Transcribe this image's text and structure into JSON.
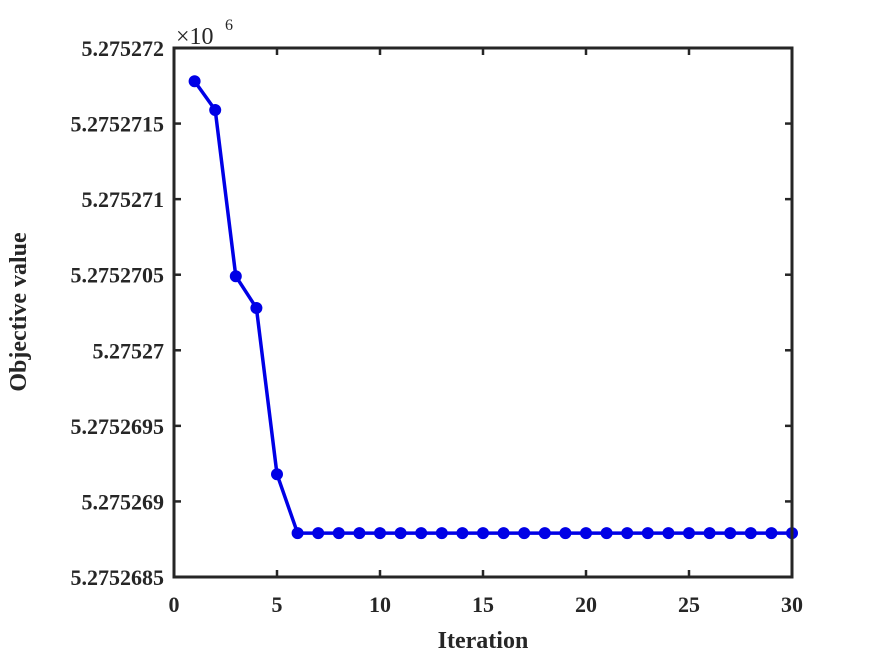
{
  "chart_data": {
    "type": "line",
    "title": "",
    "xlabel": "Iteration",
    "ylabel": "Objective value",
    "exponent_base": "×10",
    "exponent_power": "6",
    "xlim": [
      0,
      30
    ],
    "ylim": [
      5.2752685,
      5.275272
    ],
    "xticks": [
      0,
      5,
      10,
      15,
      20,
      25,
      30
    ],
    "xtick_labels": [
      "0",
      "5",
      "10",
      "15",
      "20",
      "25",
      "30"
    ],
    "yticks": [
      5.2752685,
      5.275269,
      5.2752695,
      5.27527,
      5.2752705,
      5.275271,
      5.2752715,
      5.275272
    ],
    "ytick_labels": [
      "5.2752685",
      "5.275269",
      "5.2752695",
      "5.27527",
      "5.2752705",
      "5.275271",
      "5.2752715",
      "5.275272"
    ],
    "grid": false,
    "line_color": "#0000E6",
    "marker": "circle",
    "series": [
      {
        "x": [
          1,
          2,
          3,
          4,
          5,
          6,
          7,
          8,
          9,
          10,
          11,
          12,
          13,
          14,
          15,
          16,
          17,
          18,
          19,
          20,
          21,
          22,
          23,
          24,
          25,
          26,
          27,
          28,
          29,
          30
        ],
        "y": [
          5.27527178,
          5.27527159,
          5.27527049,
          5.27527028,
          5.27526918,
          5.27526879,
          5.27526879,
          5.27526879,
          5.27526879,
          5.27526879,
          5.27526879,
          5.27526879,
          5.27526879,
          5.27526879,
          5.27526879,
          5.27526879,
          5.27526879,
          5.27526879,
          5.27526879,
          5.27526879,
          5.27526879,
          5.27526879,
          5.27526879,
          5.27526879,
          5.27526879,
          5.27526879,
          5.27526879,
          5.27526879,
          5.27526879,
          5.27526879
        ]
      }
    ]
  }
}
